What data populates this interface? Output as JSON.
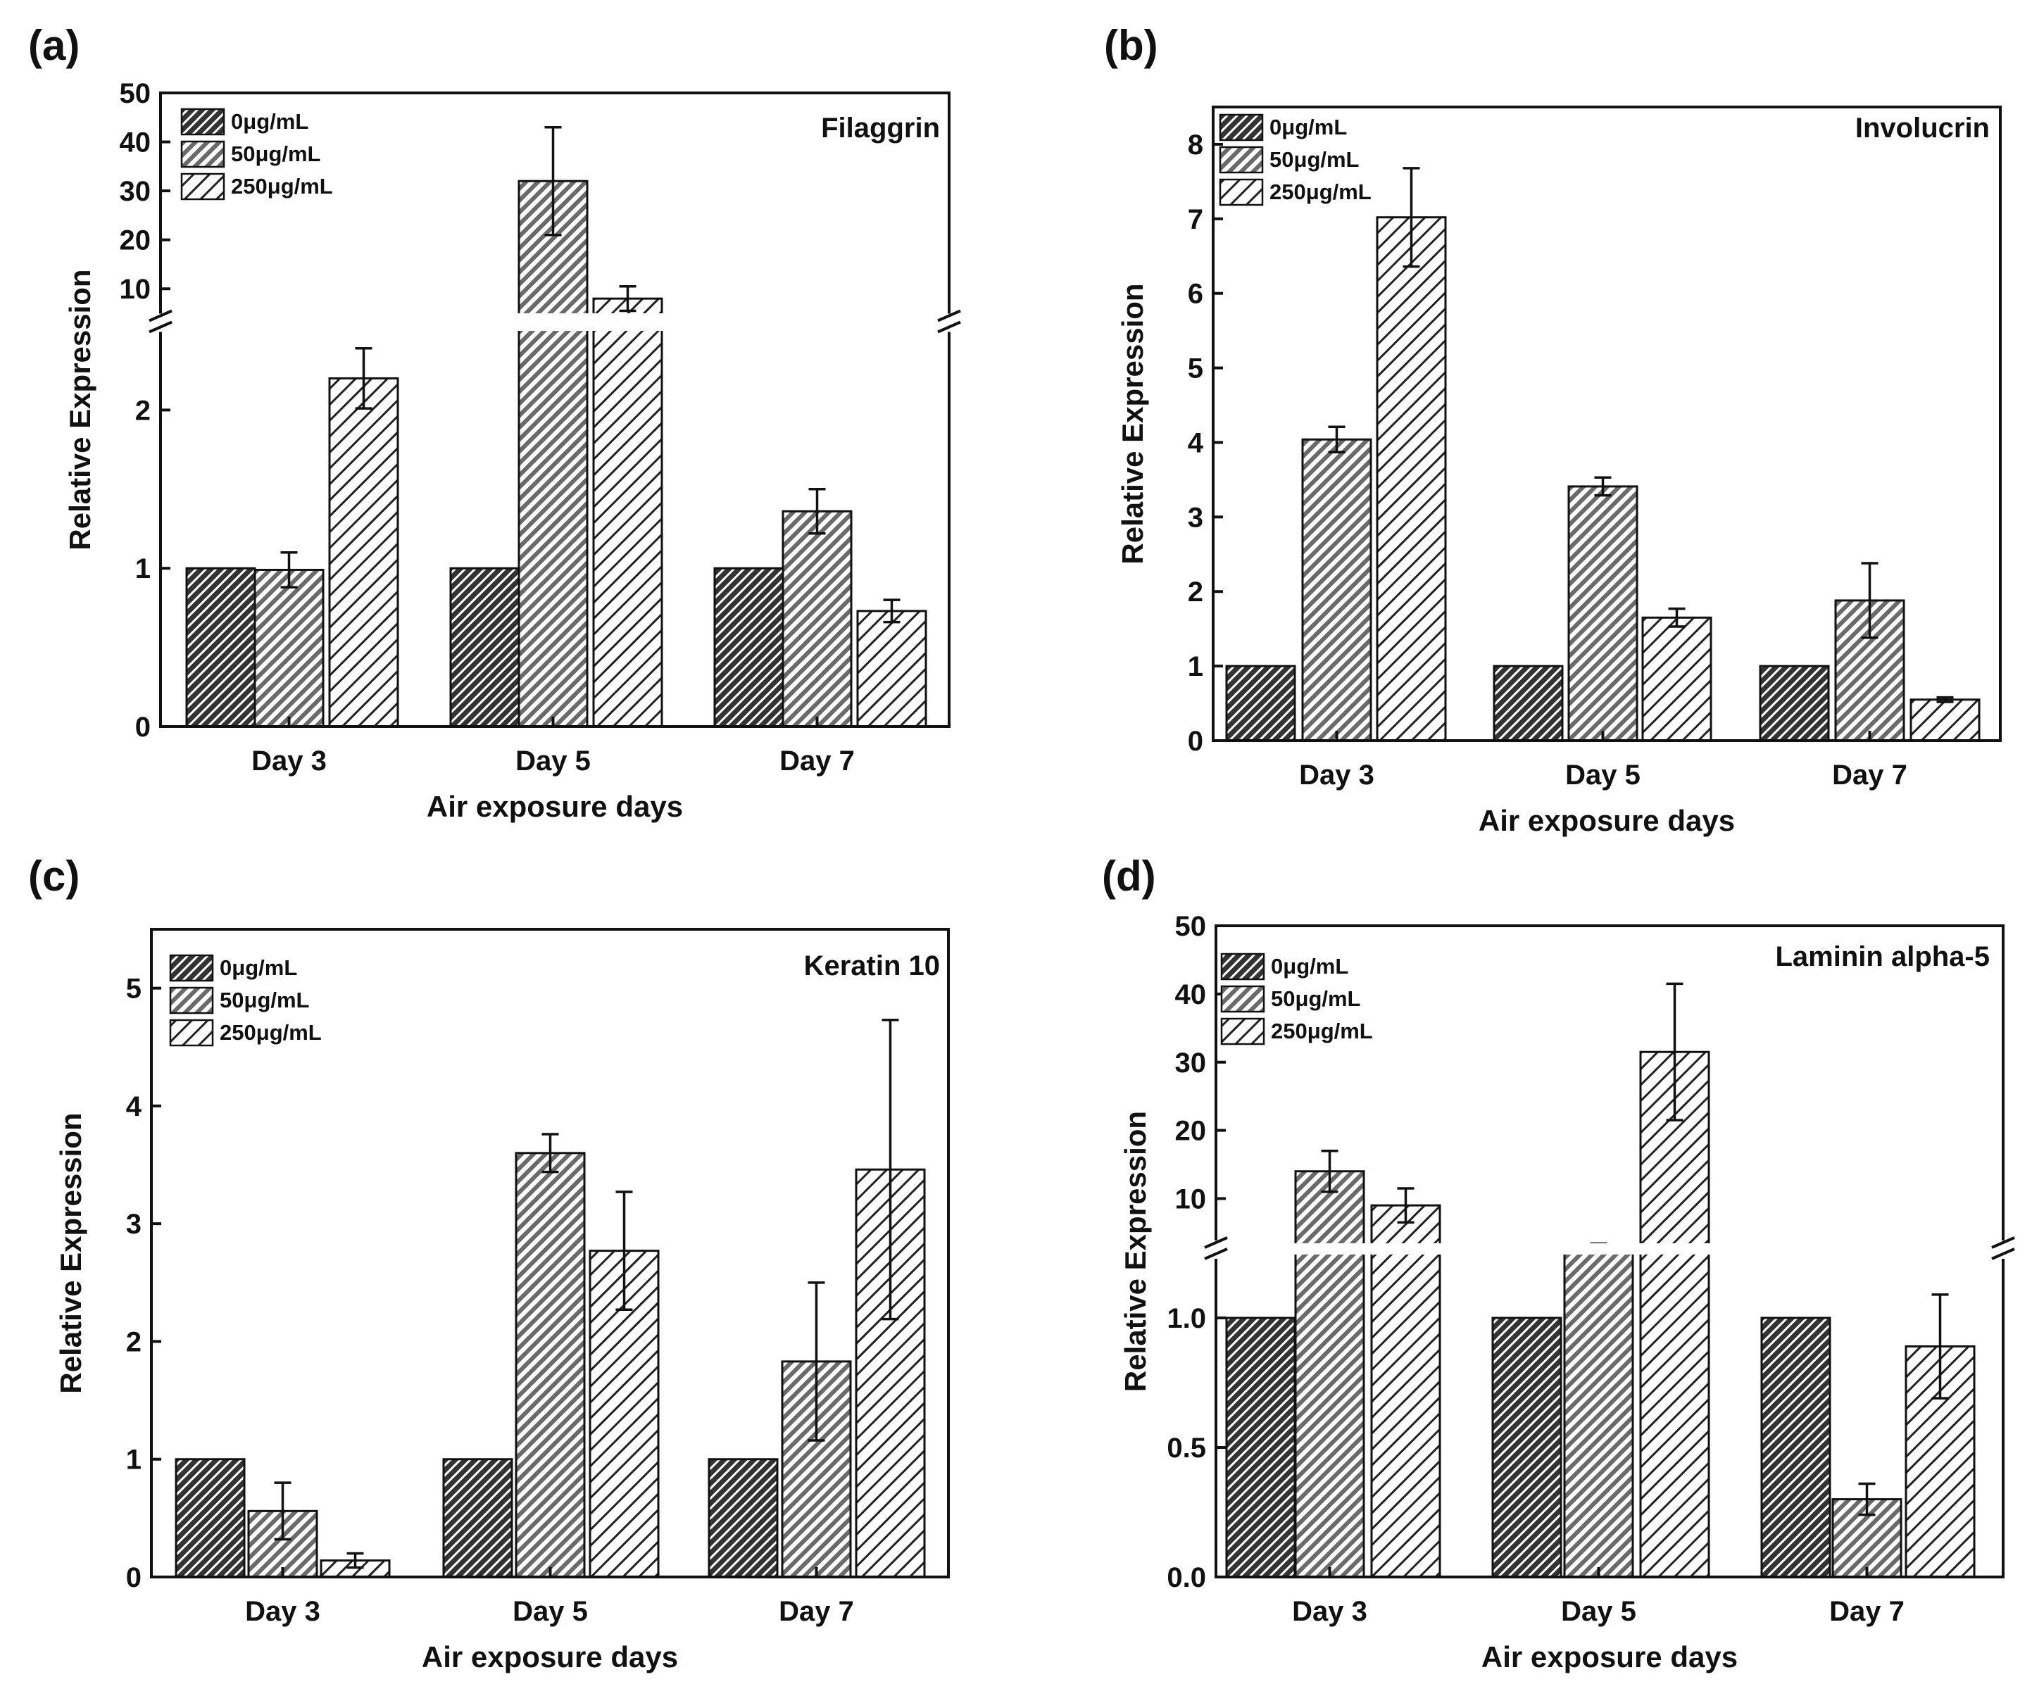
{
  "chart_data": [
    {
      "panel": "(a)",
      "type": "bar",
      "gene": "Filaggrin",
      "xlabel": "Air exposure days",
      "ylabel": "Relative Expression",
      "categories": [
        "Day 3",
        "Day 5",
        "Day 7"
      ],
      "axis_break": true,
      "lower_range": [
        0,
        2.5
      ],
      "lower_ticks": [
        {
          "v": 0,
          "label": "0"
        },
        {
          "v": 1,
          "label": "1"
        },
        {
          "v": 2,
          "label": "2"
        }
      ],
      "upper_range": [
        5,
        50
      ],
      "upper_ticks": [
        {
          "v": 10,
          "label": "10"
        },
        {
          "v": 20,
          "label": "20"
        },
        {
          "v": 30,
          "label": "30"
        },
        {
          "v": 40,
          "label": "40"
        },
        {
          "v": 50,
          "label": "50"
        }
      ],
      "series": [
        {
          "name": "0μg/mL",
          "pattern": "dark",
          "values": [
            1,
            1,
            1
          ],
          "errors": [
            0,
            0,
            0
          ]
        },
        {
          "name": "50μg/mL",
          "pattern": "medium",
          "values": [
            0.99,
            32,
            1.36
          ],
          "errors": [
            0.11,
            11,
            0.14
          ]
        },
        {
          "name": "250μg/mL",
          "pattern": "light",
          "values": [
            2.2,
            8,
            0.73
          ],
          "errors": [
            0.19,
            2.5,
            0.07
          ]
        }
      ]
    },
    {
      "panel": "(b)",
      "type": "bar",
      "gene": "Involucrin",
      "xlabel": "Air exposure days",
      "ylabel": "Relative Expression",
      "categories": [
        "Day 3",
        "Day 5",
        "Day 7"
      ],
      "axis_break": false,
      "ylim": [
        0,
        8.5
      ],
      "ticks": [
        {
          "v": 0,
          "label": "0"
        },
        {
          "v": 1,
          "label": "1"
        },
        {
          "v": 2,
          "label": "2"
        },
        {
          "v": 3,
          "label": "3"
        },
        {
          "v": 4,
          "label": "4"
        },
        {
          "v": 5,
          "label": "5"
        },
        {
          "v": 6,
          "label": "6"
        },
        {
          "v": 7,
          "label": "7"
        },
        {
          "v": 8,
          "label": "8"
        }
      ],
      "series": [
        {
          "name": "0μg/mL",
          "pattern": "dark",
          "values": [
            1,
            1,
            1
          ],
          "errors": [
            0,
            0,
            0
          ]
        },
        {
          "name": "50μg/mL",
          "pattern": "medium",
          "values": [
            4.04,
            3.41,
            1.88
          ],
          "errors": [
            0.17,
            0.12,
            0.5
          ]
        },
        {
          "name": "250μg/mL",
          "pattern": "light",
          "values": [
            7.02,
            1.65,
            0.55
          ],
          "errors": [
            0.66,
            0.12,
            0.03
          ]
        }
      ]
    },
    {
      "panel": "(c)",
      "type": "bar",
      "gene": "Keratin 10",
      "xlabel": "Air exposure days",
      "ylabel": "Relative Expression",
      "categories": [
        "Day 3",
        "Day 5",
        "Day 7"
      ],
      "axis_break": false,
      "ylim": [
        0,
        5.5
      ],
      "ticks": [
        {
          "v": 0,
          "label": "0"
        },
        {
          "v": 1,
          "label": "1"
        },
        {
          "v": 2,
          "label": "2"
        },
        {
          "v": 3,
          "label": "3"
        },
        {
          "v": 4,
          "label": "4"
        },
        {
          "v": 5,
          "label": "5"
        }
      ],
      "series": [
        {
          "name": "0μg/mL",
          "pattern": "dark",
          "values": [
            1,
            1,
            1
          ],
          "errors": [
            0,
            0,
            0
          ]
        },
        {
          "name": "50μg/mL",
          "pattern": "medium",
          "values": [
            0.56,
            3.6,
            1.83
          ],
          "errors": [
            0.24,
            0.16,
            0.67
          ]
        },
        {
          "name": "250μg/mL",
          "pattern": "light",
          "values": [
            0.14,
            2.77,
            3.46
          ],
          "errors": [
            0.06,
            0.5,
            1.27
          ]
        }
      ]
    },
    {
      "panel": "(d)",
      "type": "bar",
      "gene": "Laminin alpha-5",
      "xlabel": "Air exposure days",
      "ylabel": "Relative Expression",
      "categories": [
        "Day 3",
        "Day 5",
        "Day 7"
      ],
      "axis_break": true,
      "lower_range": [
        0,
        1.25
      ],
      "lower_ticks": [
        {
          "v": 0,
          "label": "0.0"
        },
        {
          "v": 0.5,
          "label": "0.5"
        },
        {
          "v": 1,
          "label": "1.0"
        }
      ],
      "upper_range": [
        2,
        50
      ],
      "upper_ticks": [
        {
          "v": 10,
          "label": "10"
        },
        {
          "v": 20,
          "label": "20"
        },
        {
          "v": 30,
          "label": "30"
        },
        {
          "v": 40,
          "label": "40"
        },
        {
          "v": 50,
          "label": "50"
        }
      ],
      "series": [
        {
          "name": "0μg/mL",
          "pattern": "dark",
          "values": [
            1,
            1,
            1
          ],
          "errors": [
            0,
            0,
            0
          ]
        },
        {
          "name": "50μg/mL",
          "pattern": "medium",
          "values": [
            14,
            3,
            0.3
          ],
          "errors": [
            3,
            0.4,
            0.06
          ]
        },
        {
          "name": "250μg/mL",
          "pattern": "light",
          "values": [
            9,
            31.5,
            0.89
          ],
          "errors": [
            2.5,
            10,
            0.2
          ]
        }
      ]
    }
  ]
}
